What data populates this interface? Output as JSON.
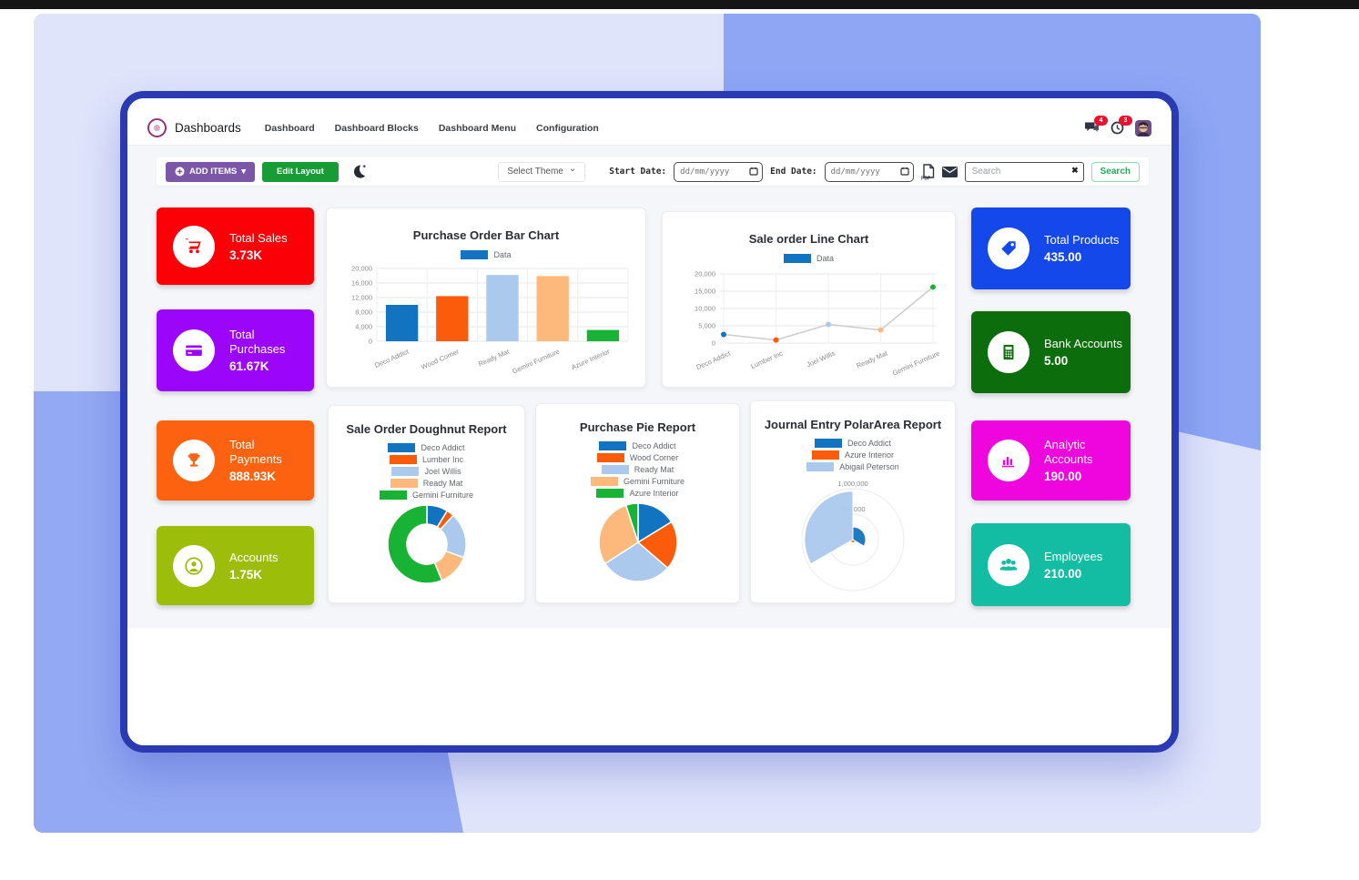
{
  "app": {
    "topbar_color": "#151515",
    "window_border_color": "#2a3ab2",
    "background_panel_color": "#dfe4fb",
    "background_accent_color": "#8ea6f4"
  },
  "navbar": {
    "brand": "Dashboards",
    "menu": [
      {
        "label": "Dashboard"
      },
      {
        "label": "Dashboard Blocks"
      },
      {
        "label": "Dashboard Menu"
      },
      {
        "label": "Configuration"
      }
    ],
    "notifications": [
      {
        "name": "messages",
        "count": "4"
      },
      {
        "name": "activities",
        "count": "3"
      }
    ]
  },
  "toolbar": {
    "add_items_label": "ADD ITEMS",
    "edit_layout_label": "Edit Layout",
    "select_theme_label": "Select Theme",
    "start_date_label": "Start Date:",
    "end_date_label": "End Date:",
    "date_placeholder": "dd/mm/yyyy",
    "search_placeholder": "Search",
    "search_button_label": "Search"
  },
  "icons": {
    "caret_down": "▾",
    "chevron_down": "⌄",
    "search_clear": "✖",
    "pdf_label": "PDF"
  },
  "kpis": [
    {
      "label": "Total Sales",
      "value": "3.73K",
      "color": "#fb0107",
      "icon": "cart-icon"
    },
    {
      "label": "Total Purchases",
      "value": "61.67K",
      "color": "#9b05fa",
      "icon": "credit-card-icon"
    },
    {
      "label": "Total Payments",
      "value": "888.93K",
      "color": "#fc6210",
      "icon": "trophy-icon"
    },
    {
      "label": "Accounts",
      "value": "1.75K",
      "color": "#9dbd0b",
      "icon": "user-icon"
    },
    {
      "label": "Total Products",
      "value": "435.00",
      "color": "#1448eb",
      "icon": "tag-icon"
    },
    {
      "label": "Bank Accounts",
      "value": "5.00",
      "color": "#0c6d0c",
      "icon": "bank-icon"
    },
    {
      "label": "Analytic Accounts",
      "value": "190.00",
      "color": "#ef05dd",
      "icon": "bar-chart-icon"
    },
    {
      "label": "Employees",
      "value": "210.00",
      "color": "#12bda4",
      "icon": "users-icon"
    }
  ],
  "chart_data": [
    {
      "type": "bar",
      "title": "Purchase Order Bar Chart",
      "legend": [
        {
          "label": "Data",
          "color": "#1273c0"
        }
      ],
      "categories": [
        "Deco Addict",
        "Wood Corner",
        "Ready Mat",
        "Gemini Furniture",
        "Azure Interior"
      ],
      "values": [
        10000,
        12400,
        18200,
        17900,
        3100
      ],
      "colors": [
        "#1273c0",
        "#fb5c0c",
        "#abc8ed",
        "#fdb97b",
        "#18b334"
      ],
      "ylim": [
        0,
        20000
      ],
      "yticks": [
        0,
        4000,
        8000,
        12000,
        16000,
        20000
      ],
      "grid": true
    },
    {
      "type": "line",
      "title": "Sale order Line Chart",
      "legend": [
        {
          "label": "Data",
          "color": "#1273c0"
        }
      ],
      "categories": [
        "Deco Addict",
        "Lumber Inc",
        "Joel Willis",
        "Ready Mat",
        "Gemini Furniture"
      ],
      "values": [
        2500,
        900,
        5400,
        3800,
        16200
      ],
      "line_color": "#cccccc",
      "point_colors": [
        "#1273c0",
        "#fb5c0c",
        "#abc8ed",
        "#fdb97b",
        "#18b334"
      ],
      "ylim": [
        0,
        20000
      ],
      "yticks": [
        0,
        5000,
        10000,
        15000,
        20000
      ],
      "grid": true
    },
    {
      "type": "doughnut",
      "title": "Sale Order Doughnut Report",
      "labels": [
        "Deco Addict",
        "Lumber Inc",
        "Joel Willis",
        "Ready Mat",
        "Gemini Furniture"
      ],
      "values": [
        2500,
        900,
        5400,
        3800,
        16200
      ],
      "colors": [
        "#1273c0",
        "#fb5c0c",
        "#abc8ed",
        "#fdb97b",
        "#18b334"
      ],
      "legend_position": "top"
    },
    {
      "type": "pie",
      "title": "Purchase Pie Report",
      "labels": [
        "Deco Addict",
        "Wood Corner",
        "Ready Mat",
        "Gemini Furniture",
        "Azure Interior"
      ],
      "values": [
        10000,
        12400,
        18200,
        17900,
        3100
      ],
      "colors": [
        "#1273c0",
        "#fb5c0c",
        "#abc8ed",
        "#fdb97b",
        "#18b334"
      ],
      "legend_position": "top"
    },
    {
      "type": "polarArea",
      "title": "Journal Entry PolarArea Report",
      "labels": [
        "Deco Addict",
        "Azure Interior",
        "Abigail Peterson"
      ],
      "values": [
        250000,
        60000,
        950000
      ],
      "colors": [
        "#1273c0",
        "#fb5c0c",
        "#abc8ed"
      ],
      "rmax": 1000000,
      "rticks": [
        {
          "value": 500000,
          "label": "500,000"
        },
        {
          "value": 1000000,
          "label": "1,000,000"
        }
      ],
      "legend_position": "top"
    }
  ]
}
